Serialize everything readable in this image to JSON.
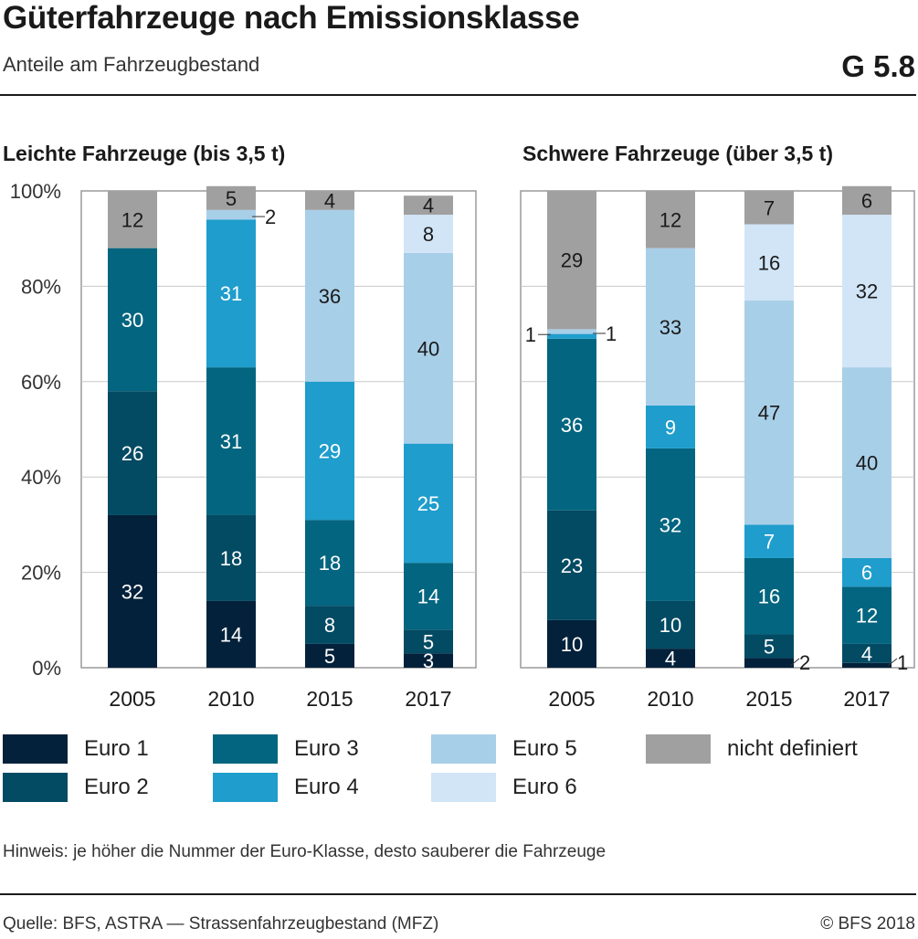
{
  "header": {
    "title": "Güterfahrzeuge nach Emissionsklasse",
    "subtitle": "Anteile am Fahrzeugbestand",
    "graphic_number": "G 5.8"
  },
  "colors": {
    "Euro 1": "#03213a",
    "Euro 2": "#034a63",
    "Euro 3": "#03657f",
    "Euro 4": "#1f9dcc",
    "Euro 5": "#a8cfe8",
    "Euro 6": "#d1e5f7",
    "nicht definiert": "#a0a0a0"
  },
  "legend": [
    {
      "label": "Euro 1"
    },
    {
      "label": "Euro 2"
    },
    {
      "label": "Euro 3"
    },
    {
      "label": "Euro 4"
    },
    {
      "label": "Euro 5"
    },
    {
      "label": "Euro 6"
    },
    {
      "label": "nicht definiert"
    }
  ],
  "note": "Hinweis: je höher die Nummer der Euro-Klasse, desto sauberer die Fahrzeuge",
  "footer": {
    "source": "Quelle: BFS, ASTRA — Strassenfahrzeugbestand (MFZ)",
    "copyright": "© BFS 2018"
  },
  "chart_data": [
    {
      "type": "bar",
      "stacked": true,
      "title": "Leichte Fahrzeuge (bis 3,5 t)",
      "categories": [
        "2005",
        "2010",
        "2015",
        "2017"
      ],
      "ylim": [
        0,
        100
      ],
      "yticks": [
        "0%",
        "20%",
        "40%",
        "60%",
        "80%",
        "100%"
      ],
      "grid": true,
      "series": [
        {
          "name": "Euro 1",
          "values": [
            32,
            14,
            5,
            3
          ]
        },
        {
          "name": "Euro 2",
          "values": [
            26,
            18,
            8,
            5
          ]
        },
        {
          "name": "Euro 3",
          "values": [
            30,
            31,
            18,
            14
          ]
        },
        {
          "name": "Euro 4",
          "values": [
            0,
            31,
            29,
            25
          ]
        },
        {
          "name": "Euro 5",
          "values": [
            0,
            2,
            36,
            40
          ]
        },
        {
          "name": "Euro 6",
          "values": [
            0,
            0,
            0,
            8
          ]
        },
        {
          "name": "nicht definiert",
          "values": [
            12,
            5,
            4,
            4
          ]
        }
      ]
    },
    {
      "type": "bar",
      "stacked": true,
      "title": "Schwere Fahrzeuge (über 3,5 t)",
      "categories": [
        "2005",
        "2010",
        "2015",
        "2017"
      ],
      "ylim": [
        0,
        100
      ],
      "grid": true,
      "series": [
        {
          "name": "Euro 1",
          "values": [
            10,
            4,
            2,
            1
          ]
        },
        {
          "name": "Euro 2",
          "values": [
            23,
            10,
            5,
            4
          ]
        },
        {
          "name": "Euro 3",
          "values": [
            36,
            32,
            16,
            12
          ]
        },
        {
          "name": "Euro 4",
          "values": [
            1,
            9,
            7,
            6
          ]
        },
        {
          "name": "Euro 5",
          "values": [
            1,
            33,
            47,
            40
          ]
        },
        {
          "name": "Euro 6",
          "values": [
            0,
            0,
            16,
            32
          ]
        },
        {
          "name": "nicht definiert",
          "values": [
            29,
            12,
            7,
            6
          ]
        }
      ]
    }
  ]
}
